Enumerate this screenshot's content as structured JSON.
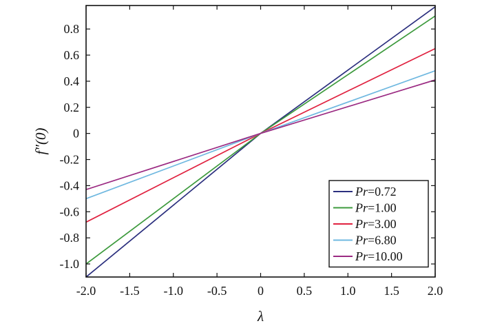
{
  "chart_data": {
    "type": "line",
    "title": "",
    "xlabel": "λ",
    "ylabel": "f″(0)",
    "xlim": [
      -2.0,
      2.0
    ],
    "ylim": [
      -1.1,
      0.98
    ],
    "grid": false,
    "legend_position": "bottom-right",
    "x_ticks": [
      {
        "value": -2.0,
        "label": "-2.0"
      },
      {
        "value": -1.5,
        "label": "-1.5"
      },
      {
        "value": -1.0,
        "label": "-1.0"
      },
      {
        "value": -0.5,
        "label": "-0.5"
      },
      {
        "value": 0.0,
        "label": "0"
      },
      {
        "value": 0.5,
        "label": "0.5"
      },
      {
        "value": 1.0,
        "label": "1.0"
      },
      {
        "value": 1.5,
        "label": "1.5"
      },
      {
        "value": 2.0,
        "label": "2.0"
      }
    ],
    "y_ticks": [
      {
        "value": -1.0,
        "label": "-1.0"
      },
      {
        "value": -0.8,
        "label": "-0.8"
      },
      {
        "value": -0.6,
        "label": "-0.6"
      },
      {
        "value": -0.4,
        "label": "-0.4"
      },
      {
        "value": -0.2,
        "label": "-0.2"
      },
      {
        "value": 0.0,
        "label": "0"
      },
      {
        "value": 0.2,
        "label": "0.2"
      },
      {
        "value": 0.4,
        "label": "0.4"
      },
      {
        "value": 0.6,
        "label": "0.6"
      },
      {
        "value": 0.8,
        "label": "0.8"
      }
    ],
    "series": [
      {
        "name": "Pr=0.72",
        "name_prefix": "Pr",
        "name_value": "=0.72",
        "color": "#2b2f7e",
        "x": [
          -2.0,
          0.0,
          2.0
        ],
        "y": [
          -1.1,
          0.0,
          0.97
        ]
      },
      {
        "name": "Pr=1.00",
        "name_prefix": "Pr",
        "name_value": "=1.00",
        "color": "#3d9a3d",
        "x": [
          -2.0,
          0.0,
          2.0
        ],
        "y": [
          -1.0,
          0.0,
          0.9
        ]
      },
      {
        "name": "Pr=3.00",
        "name_prefix": "Pr",
        "name_value": "=3.00",
        "color": "#e0213f",
        "x": [
          -2.0,
          0.0,
          2.0
        ],
        "y": [
          -0.68,
          0.0,
          0.65
        ]
      },
      {
        "name": "Pr=6.80",
        "name_prefix": "Pr",
        "name_value": "=6.80",
        "color": "#6fb8e0",
        "x": [
          -2.0,
          0.0,
          2.0
        ],
        "y": [
          -0.5,
          0.0,
          0.48
        ]
      },
      {
        "name": "Pr=10.00",
        "name_prefix": "Pr",
        "name_value": "=10.00",
        "color": "#9b2a82",
        "x": [
          -2.0,
          0.0,
          2.0
        ],
        "y": [
          -0.43,
          0.0,
          0.41
        ]
      }
    ]
  }
}
